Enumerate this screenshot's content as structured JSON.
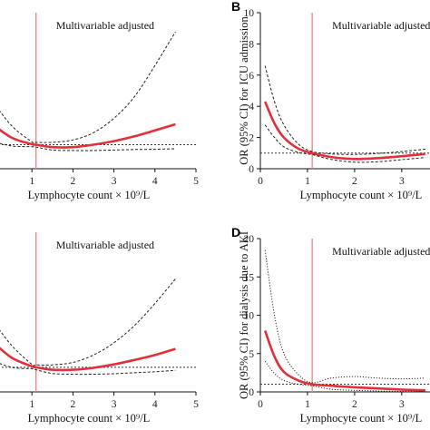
{
  "chart_data": [
    {
      "type": "line",
      "panel_label": "",
      "annotation": "Multivariable adjusted",
      "xlabel": "Lymphocyte count × 10⁹/L",
      "ylabel": "",
      "xlim": [
        0,
        5
      ],
      "ylim": [
        0,
        6.5
      ],
      "xticks": [
        "1",
        "2",
        "3",
        "4",
        "5"
      ],
      "yticks": [],
      "reference_x": 1.1,
      "reference_y": 1.0,
      "series": [
        {
          "role": "estimate",
          "x": [
            0,
            0.5,
            1.0,
            1.1,
            1.5,
            2.0,
            2.5,
            3.0,
            3.5,
            4.0,
            4.5
          ],
          "y": [
            1.9,
            1.3,
            1.02,
            1.0,
            0.9,
            0.9,
            1.0,
            1.15,
            1.35,
            1.6,
            1.85
          ]
        },
        {
          "role": "ci_upper",
          "x": [
            0,
            0.5,
            1.0,
            1.1,
            1.5,
            2.0,
            2.5,
            3.0,
            3.5,
            4.0,
            4.5
          ],
          "y": [
            2.9,
            1.8,
            1.12,
            1.1,
            1.1,
            1.2,
            1.5,
            2.1,
            3.0,
            4.3,
            5.7
          ]
        },
        {
          "role": "ci_lower",
          "x": [
            0,
            0.5,
            1.0,
            1.1,
            1.5,
            2.0,
            2.5,
            3.0,
            3.5,
            4.0,
            4.5
          ],
          "y": [
            1.15,
            0.95,
            0.92,
            0.9,
            0.78,
            0.76,
            0.76,
            0.78,
            0.8,
            0.81,
            0.83
          ]
        }
      ]
    },
    {
      "type": "line",
      "panel_label": "B",
      "annotation": "Multivariable adjusted",
      "xlabel": "Lymphocyte count × 10⁹/L",
      "ylabel": "OR (95% CI) for ICU admission",
      "xlim": [
        0,
        3.6
      ],
      "ylim": [
        0,
        10
      ],
      "xticks": [
        "0",
        "1",
        "2",
        "3"
      ],
      "yticks": [
        "0",
        "2",
        "4",
        "6",
        "8",
        "10"
      ],
      "reference_x": 1.1,
      "reference_y": 1.0,
      "series": [
        {
          "role": "estimate",
          "x": [
            0.1,
            0.3,
            0.5,
            0.8,
            1.1,
            1.5,
            2.0,
            2.5,
            3.0,
            3.5
          ],
          "y": [
            4.3,
            2.9,
            2.0,
            1.3,
            1.0,
            0.75,
            0.62,
            0.68,
            0.8,
            0.95
          ]
        },
        {
          "role": "ci_upper",
          "x": [
            0.1,
            0.3,
            0.5,
            0.8,
            1.1,
            1.5,
            2.0,
            2.5,
            3.0,
            3.5
          ],
          "y": [
            6.6,
            4.3,
            2.8,
            1.6,
            1.1,
            0.95,
            0.92,
            0.98,
            1.1,
            1.25
          ]
        },
        {
          "role": "ci_lower",
          "x": [
            0.1,
            0.3,
            0.5,
            0.8,
            1.1,
            1.5,
            2.0,
            2.5,
            3.0,
            3.5
          ],
          "y": [
            2.8,
            2.0,
            1.4,
            1.05,
            0.9,
            0.6,
            0.42,
            0.45,
            0.58,
            0.72
          ]
        }
      ]
    },
    {
      "type": "line",
      "panel_label": "",
      "annotation": "Multivariable adjusted",
      "xlabel": "Lymphocyte count × 10⁹/L",
      "ylabel": "",
      "xlim": [
        0,
        5
      ],
      "ylim": [
        0,
        6.5
      ],
      "xticks": [
        "1",
        "2",
        "3",
        "4",
        "5"
      ],
      "yticks": [],
      "reference_x": 1.1,
      "reference_y": 1.0,
      "series": [
        {
          "role": "estimate",
          "x": [
            0,
            0.5,
            1.0,
            1.1,
            1.5,
            2.0,
            2.5,
            3.0,
            3.5,
            4.0,
            4.5
          ],
          "y": [
            2.1,
            1.4,
            1.04,
            1.0,
            0.9,
            0.9,
            0.98,
            1.12,
            1.3,
            1.5,
            1.75
          ]
        },
        {
          "role": "ci_upper",
          "x": [
            0,
            0.5,
            1.0,
            1.1,
            1.5,
            2.0,
            2.5,
            3.0,
            3.5,
            4.0,
            4.5
          ],
          "y": [
            3.0,
            1.9,
            1.12,
            1.1,
            1.1,
            1.2,
            1.5,
            2.0,
            2.7,
            3.6,
            4.6
          ]
        },
        {
          "role": "ci_lower",
          "x": [
            0,
            0.5,
            1.0,
            1.1,
            1.5,
            2.0,
            2.5,
            3.0,
            3.5,
            4.0,
            4.5
          ],
          "y": [
            1.3,
            1.0,
            0.94,
            0.9,
            0.75,
            0.72,
            0.72,
            0.74,
            0.78,
            0.82,
            0.88
          ]
        }
      ]
    },
    {
      "type": "line",
      "panel_label": "D",
      "annotation": "Multivariable adjusted",
      "xlabel": "Lymphocyte count × 10⁹/L",
      "ylabel": "OR (95% CI) for dialysis due to AKI",
      "xlim": [
        0,
        3.6
      ],
      "ylim": [
        0,
        20
      ],
      "xticks": [
        "0",
        "1",
        "2",
        "3"
      ],
      "yticks": [
        "0",
        "5",
        "10",
        "15",
        "20"
      ],
      "reference_x": 1.1,
      "reference_y": 1.0,
      "series": [
        {
          "role": "estimate",
          "x": [
            0.1,
            0.3,
            0.5,
            0.8,
            1.1,
            1.5,
            2.0,
            2.5,
            3.0,
            3.5
          ],
          "y": [
            8.0,
            4.6,
            2.6,
            1.5,
            1.0,
            0.8,
            0.6,
            0.45,
            0.3,
            0.2
          ]
        },
        {
          "role": "ci_upper",
          "x": [
            0.1,
            0.3,
            0.5,
            0.8,
            1.1,
            1.5,
            2.0,
            2.5,
            3.0,
            3.5
          ],
          "y": [
            18.5,
            10.0,
            5.0,
            2.3,
            1.2,
            1.8,
            2.0,
            1.8,
            1.7,
            1.8
          ]
        },
        {
          "role": "ci_lower",
          "x": [
            0.1,
            0.3,
            0.5,
            0.8,
            1.1,
            1.5,
            2.0,
            2.5,
            3.0,
            3.5
          ],
          "y": [
            4.0,
            2.4,
            1.5,
            1.0,
            0.8,
            0.35,
            0.2,
            0.12,
            0.06,
            0.03
          ]
        }
      ]
    }
  ],
  "colors": {
    "estimate": "#e0303a",
    "reference_vline": "#f08080",
    "ci": "#222222",
    "reference_hline": "#333333",
    "axis": "#111111"
  }
}
